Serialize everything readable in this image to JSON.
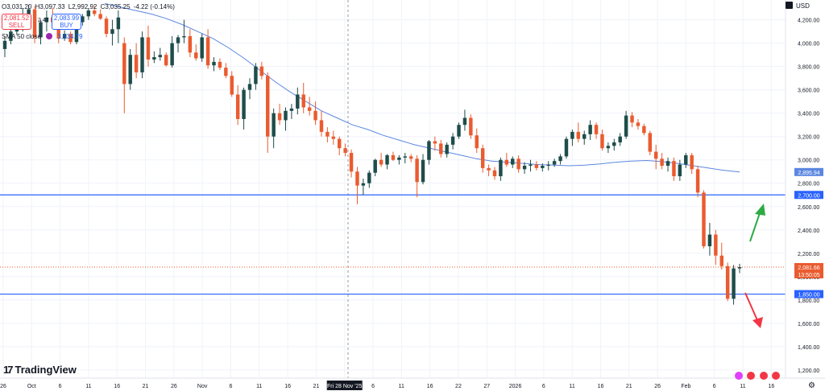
{
  "header": {
    "ohlc": {
      "open": "O3,031.20",
      "high": "H3,097.33",
      "low": "L2,992.92",
      "close": "C3,035.25",
      "change": "-4.22 (-0.14%)"
    },
    "sell": {
      "price": "2,081.52",
      "label": "SELL"
    },
    "buy": {
      "price": "2,083.99",
      "label": "BUY"
    },
    "spread": "2.47",
    "sma": {
      "label": "SMA 50 close",
      "value": "3,534.79"
    },
    "currency": "USD"
  },
  "branding": {
    "logo_mark": "17",
    "logo_text": "TradingView"
  },
  "colors": {
    "up": "#1e4d4b",
    "down": "#ea5b2f",
    "sma": "#5b87e0",
    "hline": "#2962ff",
    "current": "#ea5b2f",
    "arrow_up": "#2eaa44",
    "arrow_down": "#f23645",
    "grid": "#f0f3fa"
  },
  "chart_data": {
    "type": "candlestick",
    "symbol_unit": "USD",
    "y_axis": {
      "ticks": [
        1200,
        1400,
        1600,
        1800,
        2000,
        2200,
        2400,
        2600,
        2800,
        3000,
        3200,
        3400,
        3600,
        3800,
        4000,
        4200
      ],
      "tick_labels": [
        "1,200.00",
        "1,400.00",
        "1,600.00",
        "1,800.00",
        "2,000.00",
        "2,200.00",
        "2,400.00",
        "2,600.00",
        "2,800.00",
        "3,000.00",
        "3,200.00",
        "3,400.00",
        "3,600.00",
        "3,800.00",
        "4,000.00",
        "4,200.00"
      ],
      "range": [
        1130,
        4370
      ]
    },
    "x_axis": {
      "tick_labels": [
        "26",
        "Oct",
        "6",
        "11",
        "16",
        "21",
        "26",
        "Nov",
        "6",
        "11",
        "16",
        "21",
        "Fri 28 Nov '25",
        "6",
        "11",
        "16",
        "22",
        "27",
        "2026",
        "6",
        "11",
        "16",
        "21",
        "26",
        "Feb",
        "6",
        "11",
        "16"
      ],
      "crosshair_label": "Fri 28 Nov '25"
    },
    "horizontal_levels": [
      {
        "value": 2700,
        "label": "2,700.00"
      },
      {
        "value": 1850,
        "label": "1,850.00"
      }
    ],
    "sma_last": {
      "value": 2895.94,
      "label": "2,895.94"
    },
    "current_price": {
      "value": 2081.66,
      "label": "2,081.66",
      "countdown": "13:50:05"
    },
    "candles": [
      [
        3950,
        4060,
        3880,
        4020
      ],
      [
        4020,
        4120,
        3990,
        4100
      ],
      [
        4100,
        4180,
        4070,
        4150
      ],
      [
        4150,
        4300,
        4100,
        4250
      ],
      [
        4250,
        4330,
        4180,
        4290
      ],
      [
        4290,
        4320,
        4000,
        4050
      ],
      [
        4050,
        4200,
        3990,
        4180
      ],
      [
        4180,
        4280,
        4100,
        4220
      ],
      [
        4220,
        4300,
        4150,
        4180
      ],
      [
        4180,
        4200,
        4000,
        4040
      ],
      [
        4040,
        4110,
        4020,
        4080
      ],
      [
        4080,
        4100,
        3990,
        4010
      ],
      [
        4010,
        4200,
        3990,
        4180
      ],
      [
        4180,
        4250,
        4150,
        4230
      ],
      [
        4230,
        4300,
        4200,
        4280
      ],
      [
        4280,
        4320,
        4230,
        4250
      ],
      [
        4250,
        4290,
        4200,
        4210
      ],
      [
        4210,
        4230,
        4050,
        4080
      ],
      [
        4080,
        4200,
        3980,
        4120
      ],
      [
        4120,
        4280,
        4000,
        4220
      ],
      [
        4000,
        4050,
        3400,
        3650
      ],
      [
        3650,
        3950,
        3600,
        3900
      ],
      [
        3900,
        4000,
        3700,
        3750
      ],
      [
        3750,
        4100,
        3700,
        4050
      ],
      [
        4050,
        4150,
        3800,
        3860
      ],
      [
        3860,
        3930,
        3830,
        3880
      ],
      [
        3880,
        3960,
        3850,
        3900
      ],
      [
        3900,
        3920,
        3800,
        3810
      ],
      [
        3810,
        4060,
        3790,
        4000
      ],
      [
        4000,
        4070,
        3920,
        4050
      ],
      [
        4050,
        4200,
        4000,
        4060
      ],
      [
        4060,
        4120,
        3880,
        3920
      ],
      [
        3920,
        3990,
        3850,
        3870
      ],
      [
        3870,
        4080,
        3840,
        4050
      ],
      [
        4050,
        4120,
        3780,
        3810
      ],
      [
        3810,
        3880,
        3760,
        3840
      ],
      [
        3840,
        3870,
        3770,
        3790
      ],
      [
        3790,
        3830,
        3700,
        3720
      ],
      [
        3720,
        3760,
        3540,
        3560
      ],
      [
        3560,
        3640,
        3300,
        3350
      ],
      [
        3350,
        3620,
        3260,
        3600
      ],
      [
        3600,
        3700,
        3520,
        3650
      ],
      [
        3650,
        3830,
        3600,
        3800
      ],
      [
        3800,
        3840,
        3690,
        3720
      ],
      [
        3720,
        3750,
        3060,
        3200
      ],
      [
        3200,
        3440,
        3100,
        3400
      ],
      [
        3400,
        3480,
        3300,
        3340
      ],
      [
        3340,
        3450,
        3250,
        3420
      ],
      [
        3420,
        3480,
        3350,
        3440
      ],
      [
        3440,
        3620,
        3390,
        3560
      ],
      [
        3560,
        3660,
        3400,
        3450
      ],
      [
        3450,
        3540,
        3380,
        3420
      ],
      [
        3420,
        3500,
        3300,
        3340
      ],
      [
        3340,
        3420,
        3200,
        3240
      ],
      [
        3240,
        3280,
        3150,
        3200
      ],
      [
        3200,
        3250,
        3130,
        3180
      ],
      [
        3180,
        3200,
        3040,
        3100
      ],
      [
        3100,
        3140,
        3030,
        3060
      ],
      [
        3060,
        3090,
        2850,
        2900
      ],
      [
        2900,
        2940,
        2620,
        2780
      ],
      [
        2780,
        2840,
        2700,
        2800
      ],
      [
        2800,
        2910,
        2760,
        2890
      ],
      [
        2890,
        3010,
        2860,
        3000
      ],
      [
        3000,
        3060,
        2940,
        2960
      ],
      [
        2960,
        3050,
        2920,
        3040
      ],
      [
        3040,
        3070,
        2990,
        3000
      ],
      [
        3000,
        3040,
        2960,
        3020
      ],
      [
        3020,
        3060,
        2970,
        3030
      ],
      [
        3030,
        3050,
        2980,
        3010
      ],
      [
        3010,
        3040,
        2680,
        2810
      ],
      [
        2810,
        3050,
        2790,
        3000
      ],
      [
        3000,
        3170,
        2960,
        3160
      ],
      [
        3160,
        3200,
        3080,
        3140
      ],
      [
        3140,
        3170,
        3020,
        3050
      ],
      [
        3050,
        3150,
        3020,
        3130
      ],
      [
        3130,
        3230,
        3090,
        3200
      ],
      [
        3200,
        3320,
        3180,
        3300
      ],
      [
        3300,
        3430,
        3250,
        3360
      ],
      [
        3360,
        3390,
        3180,
        3210
      ],
      [
        3210,
        3270,
        3060,
        3100
      ],
      [
        3100,
        3130,
        2890,
        2930
      ],
      [
        2930,
        2960,
        2860,
        2910
      ],
      [
        2910,
        2940,
        2830,
        2860
      ],
      [
        2860,
        3020,
        2820,
        3000
      ],
      [
        3000,
        3060,
        2940,
        2960
      ],
      [
        2960,
        3030,
        2930,
        3010
      ],
      [
        3010,
        3040,
        2890,
        2920
      ],
      [
        2920,
        2980,
        2880,
        2950
      ],
      [
        2950,
        3000,
        2900,
        2960
      ],
      [
        2960,
        2990,
        2910,
        2930
      ],
      [
        2930,
        2970,
        2900,
        2950
      ],
      [
        2950,
        2990,
        2910,
        2960
      ],
      [
        2960,
        3010,
        2940,
        2990
      ],
      [
        2990,
        3050,
        2960,
        3030
      ],
      [
        3030,
        3200,
        3010,
        3180
      ],
      [
        3180,
        3260,
        3120,
        3240
      ],
      [
        3240,
        3320,
        3150,
        3180
      ],
      [
        3180,
        3250,
        3130,
        3220
      ],
      [
        3220,
        3340,
        3170,
        3300
      ],
      [
        3300,
        3320,
        3180,
        3220
      ],
      [
        3220,
        3260,
        3080,
        3100
      ],
      [
        3100,
        3150,
        3060,
        3120
      ],
      [
        3120,
        3180,
        3080,
        3150
      ],
      [
        3150,
        3230,
        3120,
        3200
      ],
      [
        3200,
        3420,
        3180,
        3380
      ],
      [
        3380,
        3410,
        3280,
        3320
      ],
      [
        3320,
        3350,
        3260,
        3290
      ],
      [
        3290,
        3310,
        3210,
        3230
      ],
      [
        3230,
        3250,
        3040,
        3070
      ],
      [
        3070,
        3130,
        2920,
        3010
      ],
      [
        3010,
        3060,
        2920,
        2950
      ],
      [
        2950,
        3020,
        2900,
        2990
      ],
      [
        2990,
        3020,
        2820,
        2860
      ],
      [
        2860,
        3000,
        2820,
        2960
      ],
      [
        2960,
        3060,
        2930,
        3040
      ],
      [
        3040,
        3060,
        2880,
        2920
      ],
      [
        2920,
        2950,
        2680,
        2720
      ],
      [
        2720,
        2740,
        2240,
        2260
      ],
      [
        2260,
        2460,
        2180,
        2360
      ],
      [
        2360,
        2400,
        2100,
        2180
      ],
      [
        2180,
        2290,
        2060,
        2090
      ],
      [
        2090,
        2120,
        1790,
        1810
      ],
      [
        1810,
        2100,
        1760,
        2070
      ],
      [
        2070,
        2110,
        2030,
        2081.66
      ]
    ],
    "sma": [
      4340,
      4310,
      4280,
      4250,
      4210,
      4160,
      4100,
      4040,
      3960,
      3870,
      3770,
      3670,
      3580,
      3500,
      3420,
      3360,
      3300,
      3260,
      3210,
      3170,
      3130,
      3100,
      3070,
      3040,
      3010,
      2990,
      2980,
      2970,
      2960,
      2955,
      2950,
      2955,
      2965,
      2980,
      2990,
      2995,
      2985,
      2970,
      2950,
      2930,
      2910,
      2895.94
    ]
  }
}
